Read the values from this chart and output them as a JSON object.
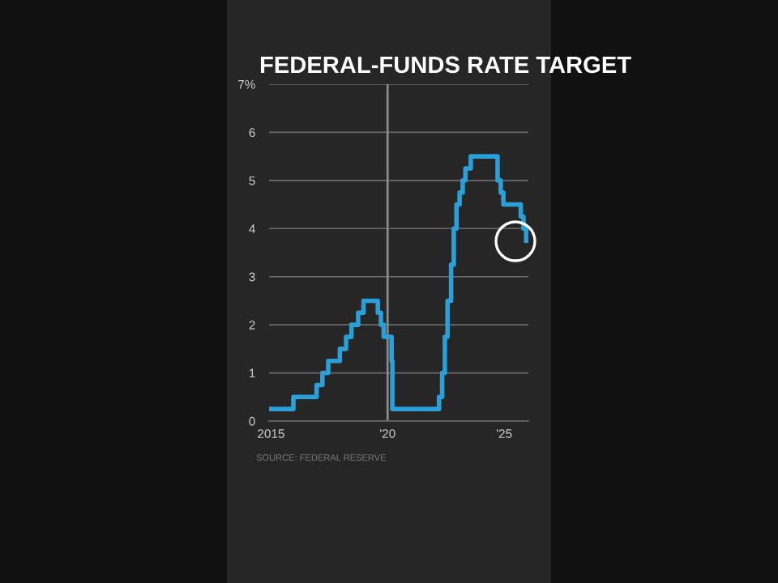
{
  "chart_data": {
    "type": "step",
    "title": "FEDERAL-FUNDS RATE TARGET",
    "x": [
      "2015-01-01",
      "2015-12-17",
      "2016-12-15",
      "2017-03-16",
      "2017-06-15",
      "2017-12-14",
      "2018-03-22",
      "2018-06-14",
      "2018-09-27",
      "2018-12-20",
      "2019-08-01",
      "2019-09-19",
      "2019-10-31",
      "2020-03-04",
      "2020-03-16",
      "2022-03-17",
      "2022-05-05",
      "2022-06-16",
      "2022-07-28",
      "2022-09-22",
      "2022-11-03",
      "2022-12-15",
      "2023-02-02",
      "2023-03-23",
      "2023-05-04",
      "2023-07-27",
      "2024-09-19",
      "2024-11-08",
      "2024-12-19",
      "2025-09-18",
      "2025-10-30",
      "2025-12-11"
    ],
    "series": [
      {
        "color": "#2a9fd8",
        "values": [
          0.25,
          0.5,
          0.75,
          1.0,
          1.25,
          1.5,
          1.75,
          2.0,
          2.25,
          2.5,
          2.25,
          2.0,
          1.75,
          1.25,
          0.25,
          0.5,
          1.0,
          1.75,
          2.5,
          3.25,
          4.0,
          4.5,
          4.75,
          5.0,
          5.25,
          5.5,
          5.0,
          4.75,
          4.5,
          4.25,
          4.0,
          3.75
        ]
      }
    ],
    "xlim": [
      "2014-12-01",
      "2026-01-15"
    ],
    "xticks": [
      {
        "value": "2015-01-01",
        "label": "2015"
      },
      {
        "value": "2020-01-01",
        "label": "'20"
      },
      {
        "value": "2025-01-01",
        "label": "'25"
      }
    ],
    "ylim": [
      0,
      7
    ],
    "yticks": [
      0,
      1,
      2,
      3,
      4,
      5,
      6,
      {
        "value": 7,
        "label": "7%"
      }
    ],
    "grid": "y",
    "ref_lines": [
      {
        "axis": "x",
        "value": "2020-01-01",
        "color": "#8a8a8a"
      }
    ],
    "annotations": [
      "SOURCE: FEDERAL RESERVE"
    ]
  }
}
